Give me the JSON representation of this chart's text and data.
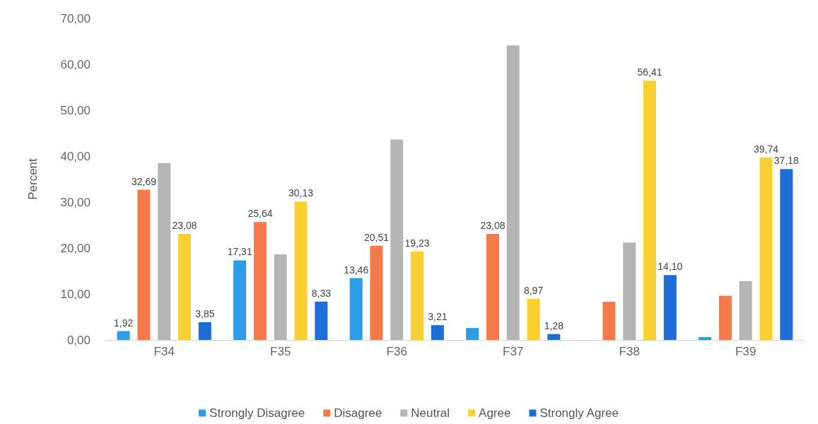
{
  "chart_data": {
    "type": "bar",
    "ylabel": "Percent",
    "categories": [
      "F34",
      "F35",
      "F36",
      "F37",
      "F38",
      "F39"
    ],
    "ylim": [
      0,
      70
    ],
    "yticks": [
      {
        "value": 0,
        "label": "0,00"
      },
      {
        "value": 10,
        "label": "10,00"
      },
      {
        "value": 20,
        "label": "20,00"
      },
      {
        "value": 30,
        "label": "30,00"
      },
      {
        "value": 40,
        "label": "40,00"
      },
      {
        "value": 50,
        "label": "50,00"
      },
      {
        "value": 60,
        "label": "60,00"
      },
      {
        "value": 70,
        "label": "70,00"
      }
    ],
    "grid": false,
    "legend": "bottom",
    "series": [
      {
        "name": "Strongly Disagree",
        "color": "#2e9be8",
        "values": [
          1.92,
          17.31,
          13.46,
          2.6,
          0,
          0.6
        ],
        "value_labels": [
          "1,92",
          "17,31",
          "13,46",
          null,
          null,
          null
        ]
      },
      {
        "name": "Disagree",
        "color": "#f47a4a",
        "values": [
          32.69,
          25.64,
          20.51,
          23.08,
          8.3,
          9.6
        ],
        "value_labels": [
          "32,69",
          "25,64",
          "20,51",
          "23,08",
          null,
          null
        ]
      },
      {
        "name": "Neutral",
        "color": "#b4b4b4",
        "values": [
          38.5,
          18.6,
          43.6,
          64.1,
          21.2,
          12.8
        ],
        "value_labels": [
          null,
          null,
          null,
          null,
          null,
          null
        ]
      },
      {
        "name": "Agree",
        "color": "#f9d030",
        "values": [
          23.08,
          30.13,
          19.23,
          8.97,
          56.41,
          39.74
        ],
        "value_labels": [
          "23,08",
          "30,13",
          "19,23",
          "8,97",
          "56,41",
          "39,74"
        ]
      },
      {
        "name": "Strongly Agree",
        "color": "#1d6fd6",
        "values": [
          3.85,
          8.33,
          3.21,
          1.28,
          14.1,
          37.18
        ],
        "value_labels": [
          "3,85",
          "8,33",
          "3,21",
          "1,28",
          "14,10",
          "37,18"
        ]
      }
    ]
  }
}
